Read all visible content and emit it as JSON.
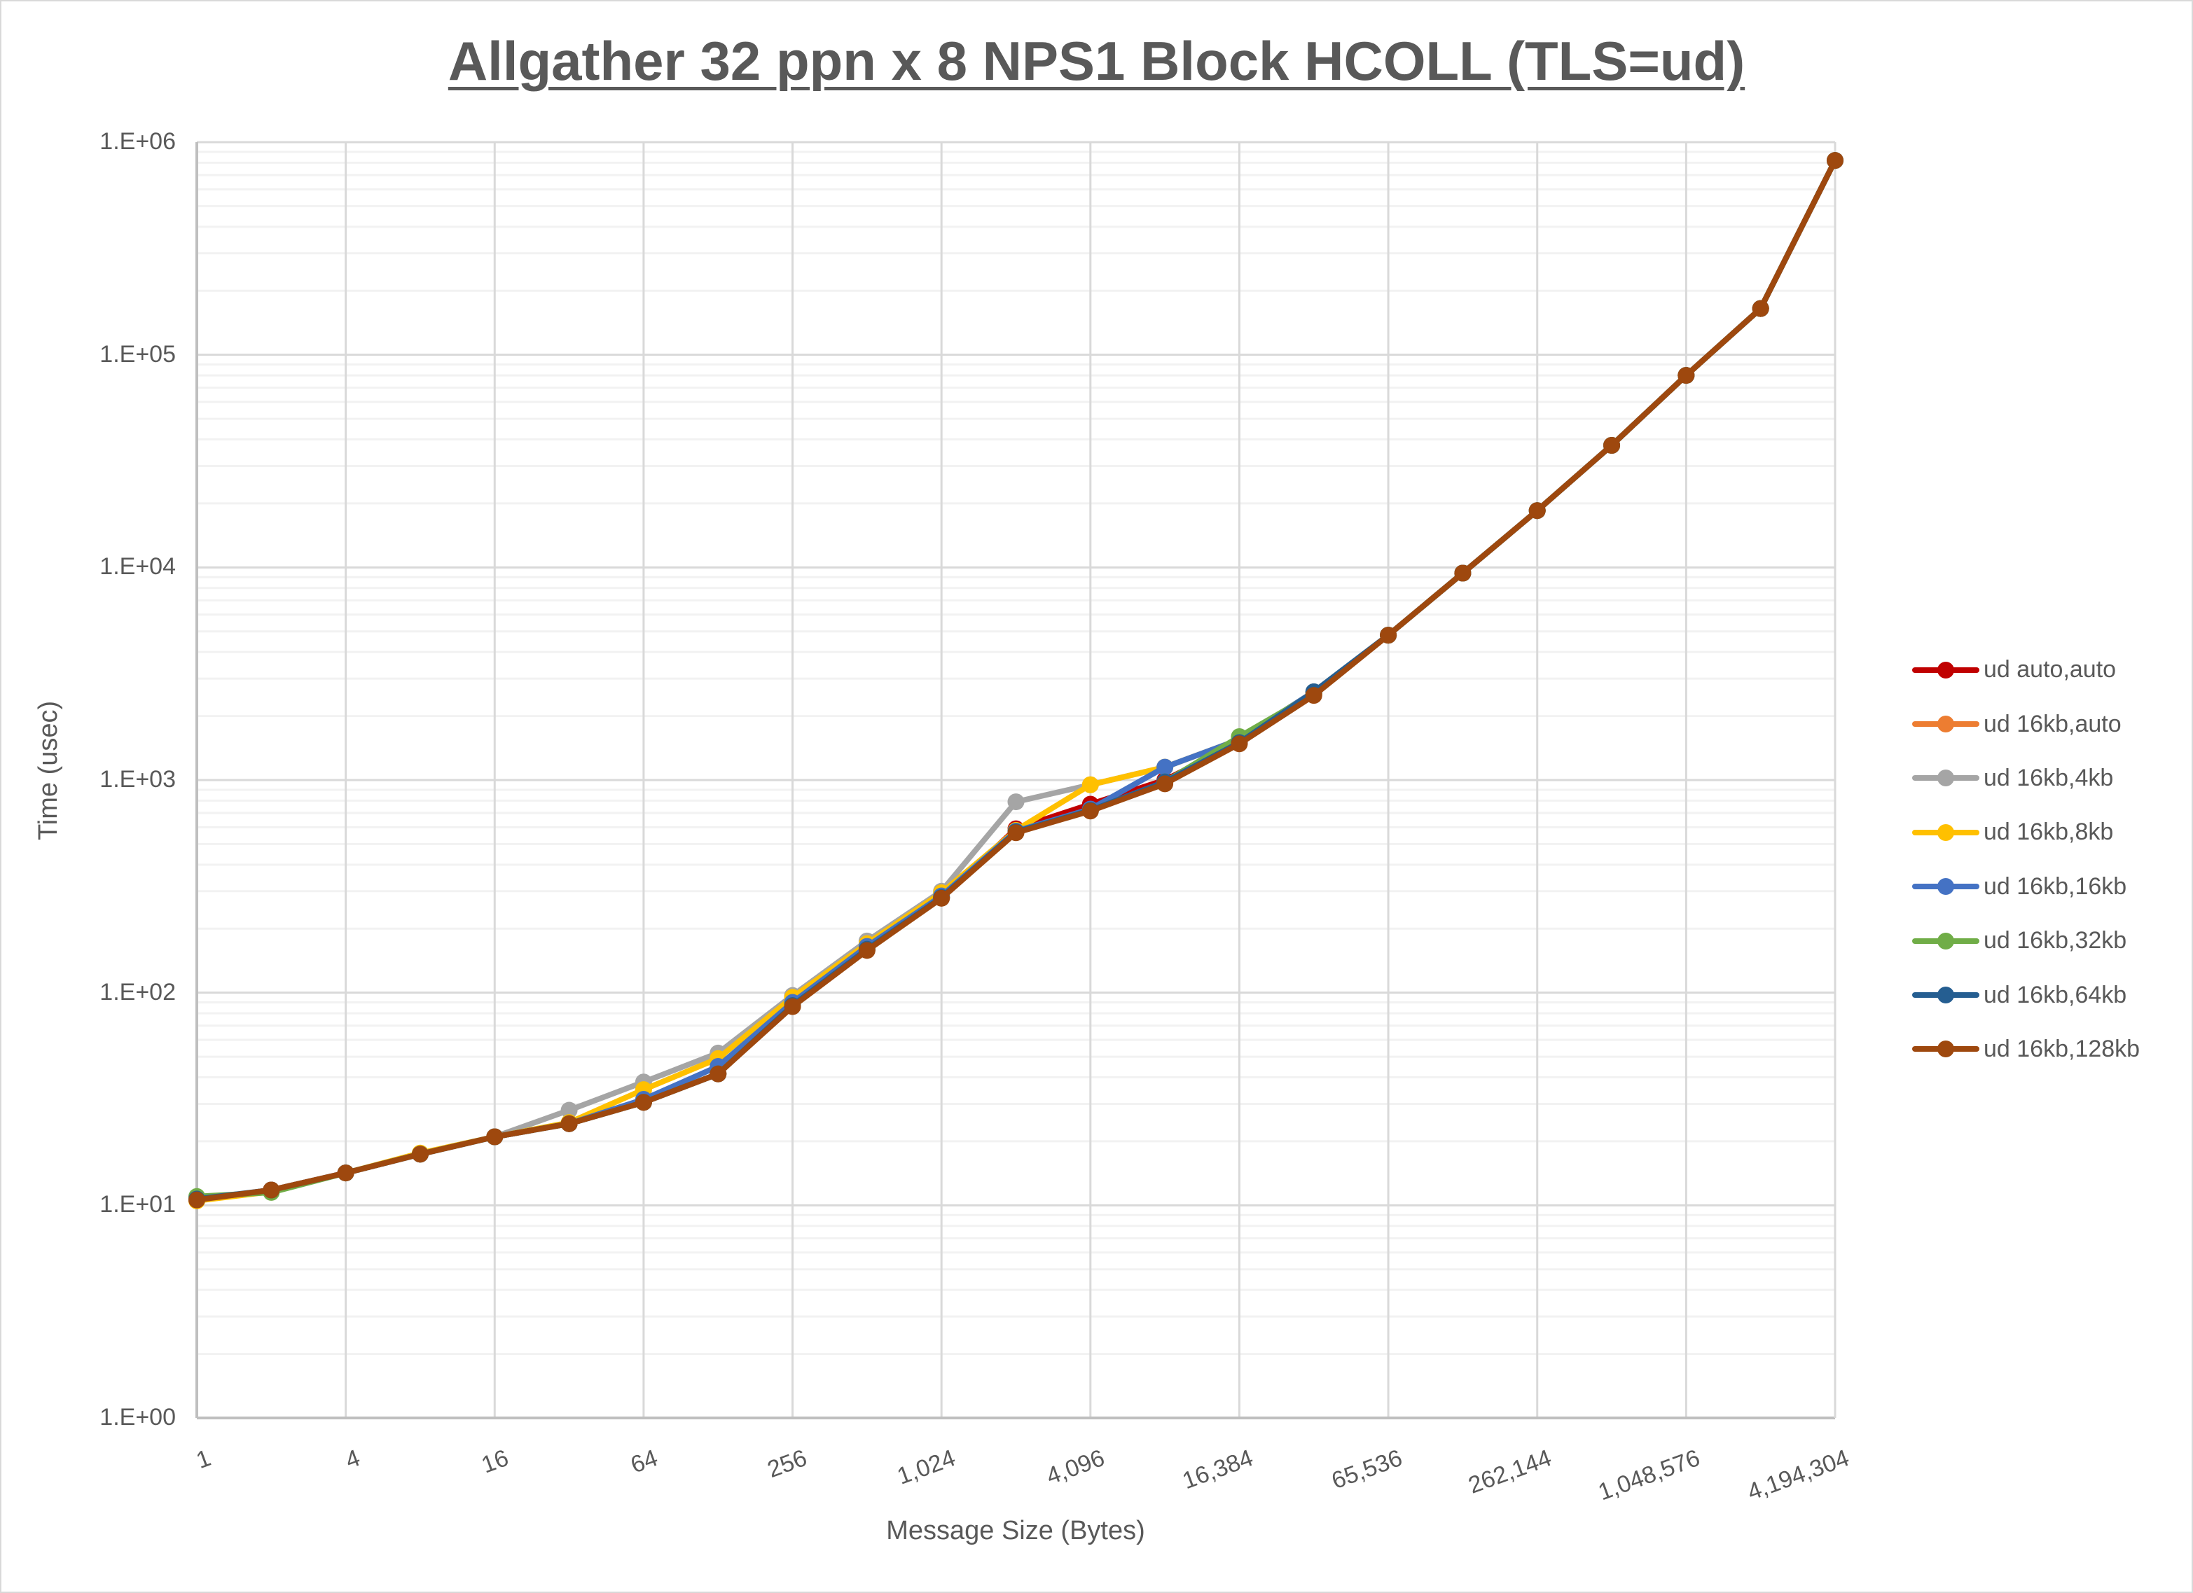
{
  "chart_data": {
    "type": "line",
    "title": "Allgather 32 ppn x 8 NPS1 Block HCOLL (TLS=ud)",
    "xlabel": "Message Size (Bytes)",
    "ylabel": "Time (usec)",
    "x_scale": "log2",
    "y_scale": "log10",
    "ylim": [
      1,
      1000000
    ],
    "grid": true,
    "legend_position": "right",
    "x": [
      1,
      2,
      4,
      8,
      16,
      32,
      64,
      128,
      256,
      512,
      1024,
      2048,
      4096,
      8192,
      16384,
      32768,
      65536,
      131072,
      262144,
      524288,
      1048576,
      2097152,
      4194304
    ],
    "x_tick_labels": [
      "1",
      "4",
      "16",
      "64",
      "256",
      "1,024",
      "4,096",
      "16,384",
      "65,536",
      "262,144",
      "1,048,576",
      "4,194,304"
    ],
    "y_tick_labels": [
      "1.E+00",
      "1.E+01",
      "1.E+02",
      "1.E+03",
      "1.E+04",
      "1.E+05",
      "1.E+06"
    ],
    "series": [
      {
        "name": "ud auto,auto",
        "color": "#C00000",
        "values": [
          10.6,
          11.8,
          14.2,
          17.4,
          21,
          24.2,
          30.5,
          41.5,
          87,
          160,
          280,
          590,
          770,
          1000,
          1500,
          2550,
          4800,
          9400,
          18500,
          37500,
          80000,
          165000,
          820000
        ]
      },
      {
        "name": "ud 16kb,auto",
        "color": "#ED7D31",
        "values": [
          10.6,
          11.8,
          14.2,
          17.4,
          21,
          24.2,
          30.5,
          41.5,
          87,
          160,
          280,
          570,
          720,
          980,
          1500,
          2550,
          4800,
          9400,
          18500,
          37500,
          80000,
          165000,
          820000
        ]
      },
      {
        "name": "ud 16kb,4kb",
        "color": "#A5A5A5",
        "values": [
          10.6,
          11.6,
          14.2,
          17.4,
          21,
          28,
          38,
          52,
          97,
          175,
          300,
          790,
          950,
          1150,
          1550,
          2600,
          4800,
          9400,
          18500,
          37500,
          80000,
          165000,
          820000
        ]
      },
      {
        "name": "ud 16kb,8kb",
        "color": "#FFC000",
        "values": [
          10.5,
          11.6,
          14.2,
          17.6,
          21,
          24.5,
          35,
          49,
          95,
          170,
          295,
          580,
          950,
          1150,
          1550,
          2600,
          4800,
          9400,
          18500,
          37500,
          80000,
          165000,
          820000
        ]
      },
      {
        "name": "ud 16kb,16kb",
        "color": "#4472C4",
        "values": [
          10.7,
          11.7,
          14.2,
          17.4,
          21,
          24.2,
          31.5,
          45,
          90,
          165,
          285,
          575,
          730,
          1150,
          1550,
          2600,
          4800,
          9400,
          18500,
          37500,
          80000,
          165000,
          820000
        ]
      },
      {
        "name": "ud 16kb,32kb",
        "color": "#70AD47",
        "values": [
          11,
          11.5,
          14.2,
          17.4,
          21,
          24.2,
          30.5,
          41.5,
          87,
          160,
          280,
          570,
          720,
          980,
          1600,
          2550,
          4800,
          9400,
          18500,
          37500,
          80000,
          165000,
          820000
        ]
      },
      {
        "name": "ud 16kb,64kb",
        "color": "#255E91",
        "values": [
          10.7,
          11.8,
          14.2,
          17.4,
          21,
          24.2,
          30.5,
          41.5,
          87,
          160,
          280,
          570,
          720,
          980,
          1500,
          2600,
          4800,
          9400,
          18500,
          37500,
          80000,
          165000,
          820000
        ]
      },
      {
        "name": "ud 16kb,128kb",
        "color": "#9E480E",
        "values": [
          10.6,
          11.8,
          14.2,
          17.4,
          21,
          24.2,
          30.5,
          41.5,
          86,
          158,
          278,
          565,
          715,
          960,
          1480,
          2500,
          4800,
          9400,
          18500,
          37500,
          80000,
          165000,
          820000
        ]
      }
    ]
  }
}
